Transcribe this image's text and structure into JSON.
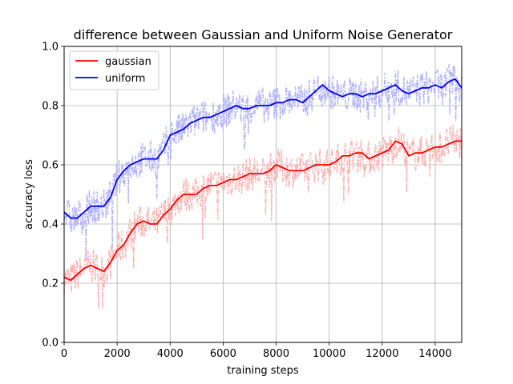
{
  "chart_data": {
    "type": "line",
    "title": "difference between Gaussian and Uniform Noise Generator",
    "xlabel": "training steps",
    "ylabel": "accuracy loss",
    "xlim": [
      0,
      15000
    ],
    "ylim": [
      0.0,
      1.0
    ],
    "xticks": [
      0,
      2000,
      4000,
      6000,
      8000,
      10000,
      12000,
      14000
    ],
    "yticks": [
      0.0,
      0.2,
      0.4,
      0.6,
      0.8,
      1.0
    ],
    "grid": true,
    "legend_position": "top-left",
    "series": [
      {
        "name": "gaussian",
        "color": "#ff0000",
        "raw_color": "#ffb3b3",
        "x": [
          0,
          250,
          500,
          750,
          1000,
          1250,
          1500,
          1750,
          2000,
          2250,
          2500,
          2750,
          3000,
          3250,
          3500,
          3750,
          4000,
          4250,
          4500,
          4750,
          5000,
          5250,
          5500,
          5750,
          6000,
          6250,
          6500,
          6750,
          7000,
          7250,
          7500,
          7750,
          8000,
          8250,
          8500,
          8750,
          9000,
          9250,
          9500,
          9750,
          10000,
          10250,
          10500,
          10750,
          11000,
          11250,
          11500,
          11750,
          12000,
          12250,
          12500,
          12750,
          13000,
          13250,
          13500,
          13750,
          14000,
          14250,
          14500,
          14750,
          15000
        ],
        "values": [
          0.22,
          0.21,
          0.23,
          0.25,
          0.26,
          0.25,
          0.24,
          0.27,
          0.31,
          0.33,
          0.37,
          0.4,
          0.41,
          0.4,
          0.4,
          0.43,
          0.45,
          0.48,
          0.5,
          0.5,
          0.5,
          0.52,
          0.53,
          0.53,
          0.54,
          0.55,
          0.55,
          0.56,
          0.57,
          0.57,
          0.57,
          0.58,
          0.6,
          0.59,
          0.58,
          0.58,
          0.58,
          0.59,
          0.6,
          0.6,
          0.6,
          0.61,
          0.63,
          0.63,
          0.64,
          0.64,
          0.62,
          0.63,
          0.64,
          0.65,
          0.68,
          0.67,
          0.63,
          0.64,
          0.64,
          0.65,
          0.66,
          0.66,
          0.67,
          0.68,
          0.68
        ]
      },
      {
        "name": "uniform",
        "color": "#0000ff",
        "raw_color": "#b3b3ff",
        "x": [
          0,
          250,
          500,
          750,
          1000,
          1250,
          1500,
          1750,
          2000,
          2250,
          2500,
          2750,
          3000,
          3250,
          3500,
          3750,
          4000,
          4250,
          4500,
          4750,
          5000,
          5250,
          5500,
          5750,
          6000,
          6250,
          6500,
          6750,
          7000,
          7250,
          7500,
          7750,
          8000,
          8250,
          8500,
          8750,
          9000,
          9250,
          9500,
          9750,
          10000,
          10250,
          10500,
          10750,
          11000,
          11250,
          11500,
          11750,
          12000,
          12250,
          12500,
          12750,
          13000,
          13250,
          13500,
          13750,
          14000,
          14250,
          14500,
          14750,
          15000
        ],
        "values": [
          0.44,
          0.42,
          0.42,
          0.44,
          0.46,
          0.46,
          0.46,
          0.49,
          0.55,
          0.58,
          0.6,
          0.61,
          0.62,
          0.62,
          0.62,
          0.65,
          0.7,
          0.71,
          0.72,
          0.74,
          0.75,
          0.76,
          0.76,
          0.77,
          0.78,
          0.79,
          0.8,
          0.79,
          0.79,
          0.8,
          0.8,
          0.8,
          0.81,
          0.81,
          0.82,
          0.82,
          0.81,
          0.83,
          0.85,
          0.87,
          0.85,
          0.84,
          0.83,
          0.84,
          0.84,
          0.83,
          0.84,
          0.84,
          0.85,
          0.86,
          0.87,
          0.85,
          0.84,
          0.85,
          0.86,
          0.86,
          0.87,
          0.86,
          0.88,
          0.89,
          0.86
        ]
      }
    ]
  }
}
